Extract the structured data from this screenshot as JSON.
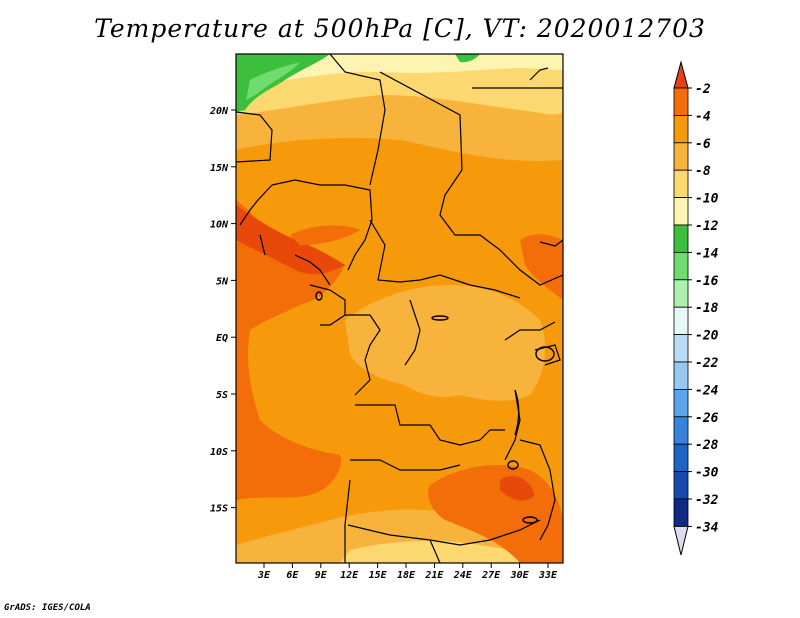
{
  "title": "Temperature at 500hPa [C], VT: 2020012703",
  "footer": "GrADS: IGES/COLA",
  "map": {
    "lat_labels": [
      "20N",
      "15N",
      "10N",
      "5N",
      "EQ",
      "5S",
      "10S",
      "15S"
    ],
    "lon_labels": [
      "3E",
      "6E",
      "9E",
      "12E",
      "15E",
      "18E",
      "21E",
      "24E",
      "27E",
      "30E",
      "33E"
    ]
  },
  "colorbar": {
    "labels": [
      "-2",
      "-4",
      "-6",
      "-8",
      "-10",
      "-12",
      "-14",
      "-16",
      "-18",
      "-20",
      "-22",
      "-24",
      "-26",
      "-28",
      "-30",
      "-32",
      "-34"
    ],
    "colors": [
      "#e8490a",
      "#f36d08",
      "#f69a0b",
      "#f8b33c",
      "#fbd870",
      "#fcf4b0",
      "#3cbf3c",
      "#6fdc6f",
      "#aef0ae",
      "#e6f8f6",
      "#b8dcf6",
      "#96c8f2",
      "#5aa6ec",
      "#3884dc",
      "#1f63c8",
      "#164aae",
      "#0e2a85"
    ],
    "top_color": "#e4401a",
    "bottom_color": "#dcdcf4"
  },
  "palette": {
    "deep_orange": "#f36d08",
    "orange": "#f69a0b",
    "light_orange": "#f8b33c",
    "yellow": "#fbd870",
    "pale_yellow": "#fcf4b0",
    "green": "#3cbf3c",
    "light_green": "#6fdc6f"
  }
}
